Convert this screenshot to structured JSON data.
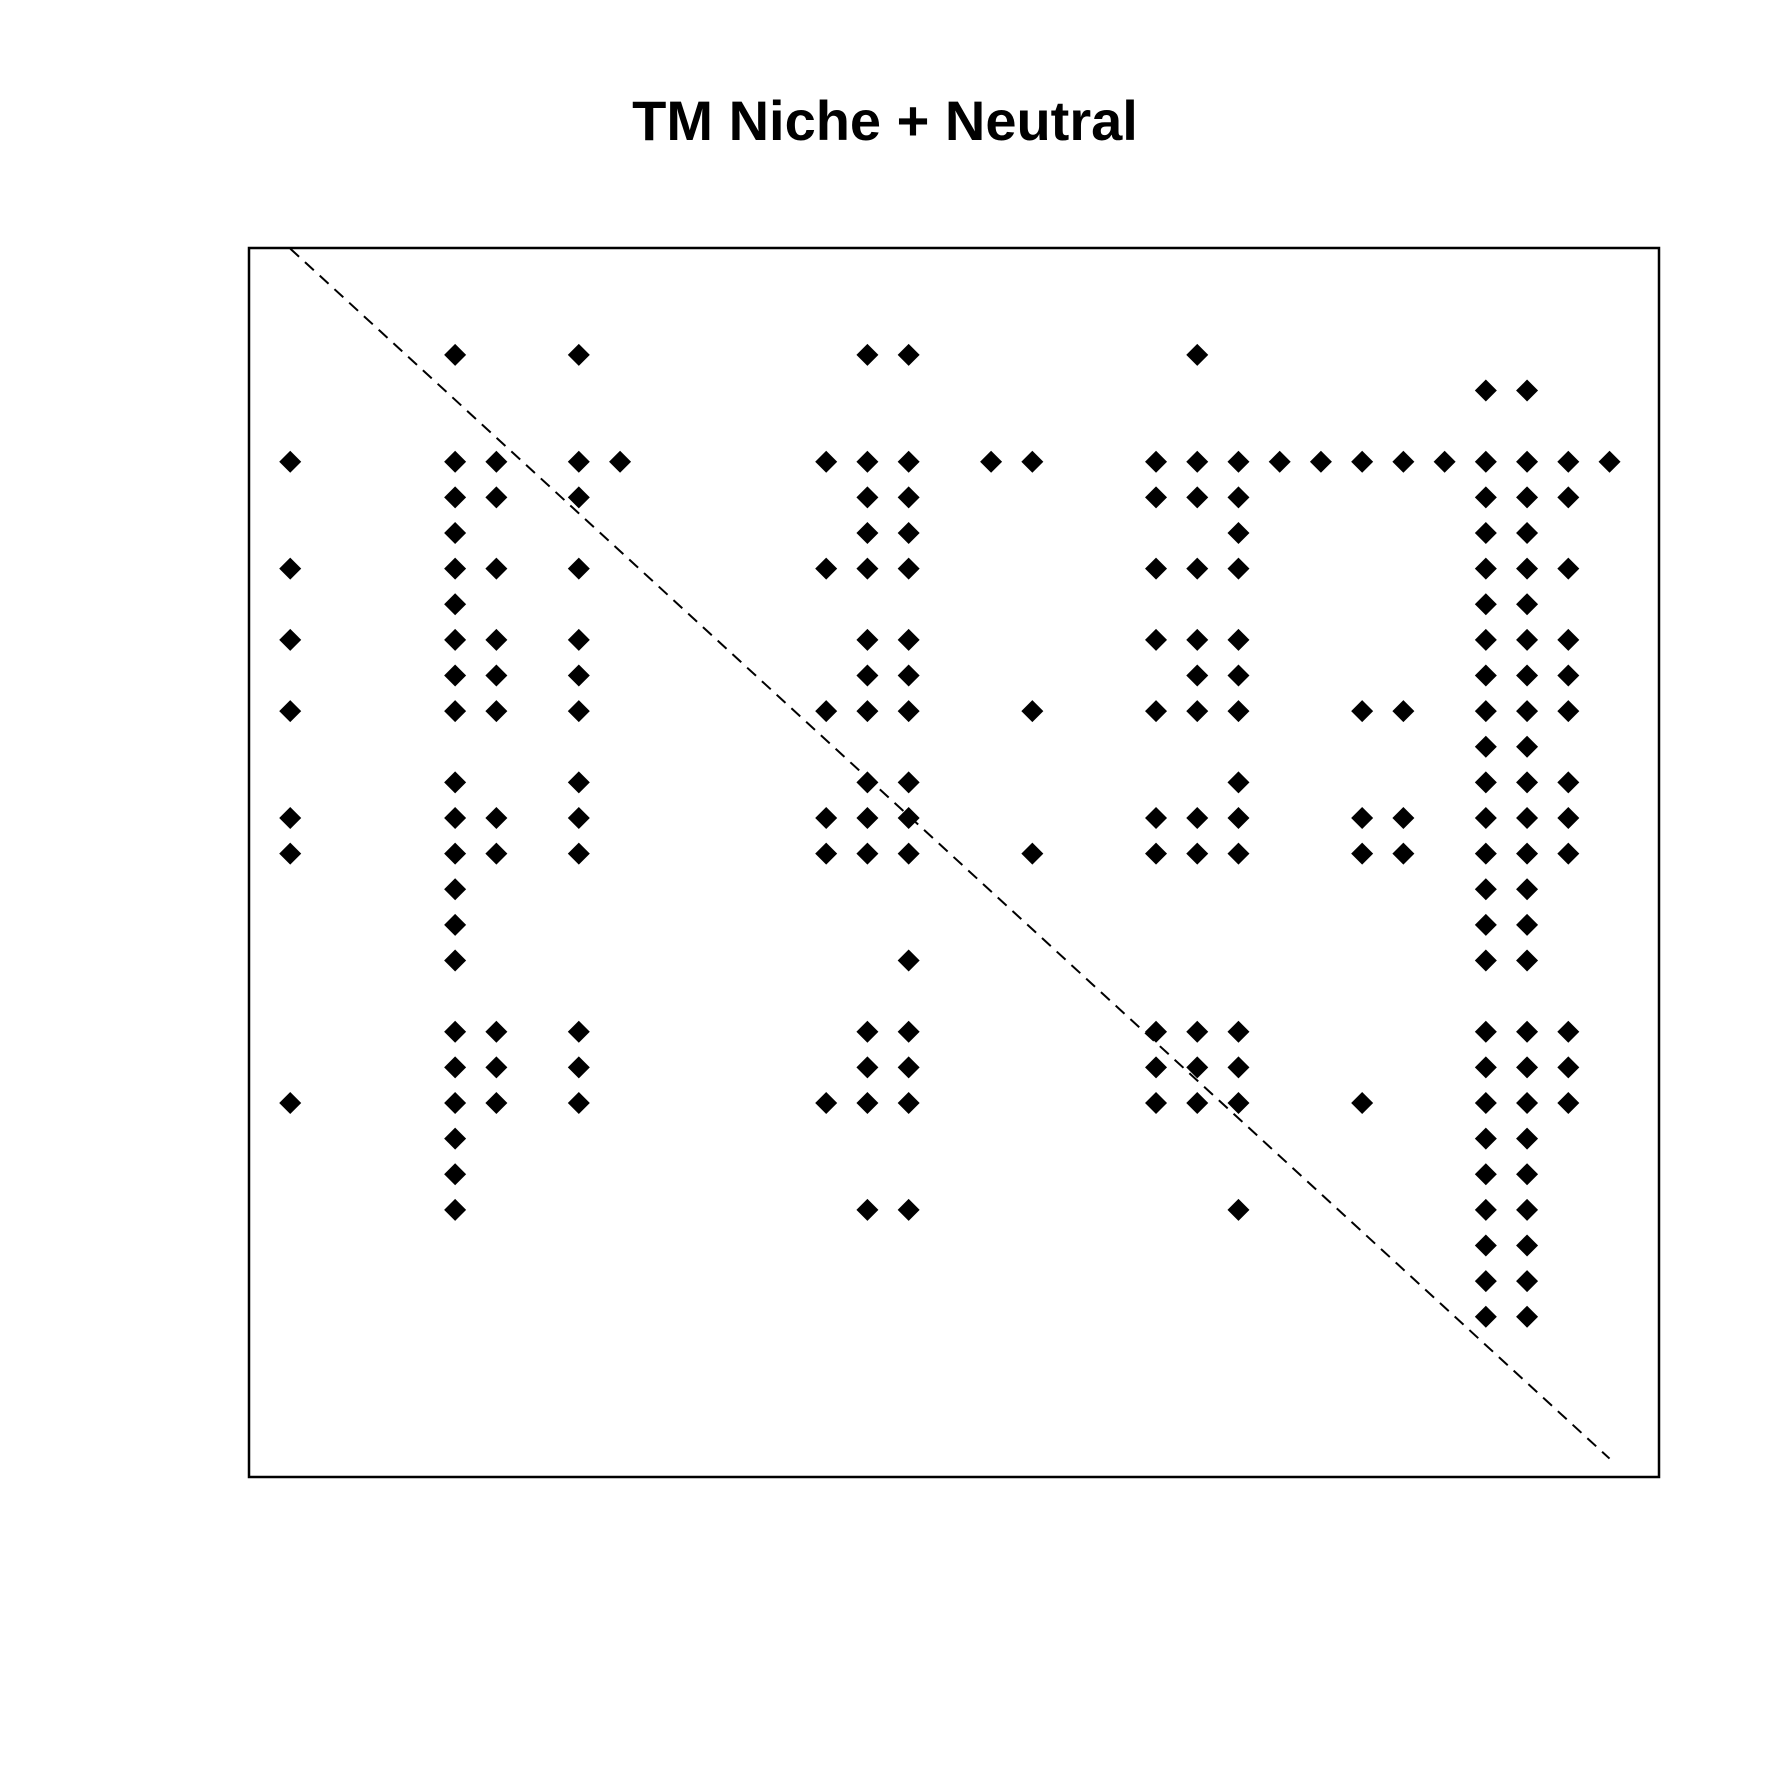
{
  "chart_data": {
    "type": "scatter",
    "title": "TM Niche + Neutral",
    "xlabel": "",
    "ylabel": "",
    "grid": false,
    "marker": "filled-diamond",
    "colors": {
      "points": "#000000",
      "diagonal": "#000000",
      "frame": "#000000"
    },
    "diagonal": {
      "style": "dashed",
      "from": [
        1,
        1
      ],
      "to": [
        33,
        33
      ]
    },
    "rows": 33,
    "cols": 33,
    "x_range": [
      0,
      34.2
    ],
    "y_range": [
      0,
      34.5
    ],
    "points": [
      [
        5,
        3
      ],
      [
        8,
        3
      ],
      [
        15,
        3
      ],
      [
        16,
        3
      ],
      [
        23,
        3
      ],
      [
        30,
        4
      ],
      [
        31,
        4
      ],
      [
        1,
        6
      ],
      [
        5,
        6
      ],
      [
        6,
        6
      ],
      [
        8,
        6
      ],
      [
        9,
        6
      ],
      [
        14,
        6
      ],
      [
        15,
        6
      ],
      [
        16,
        6
      ],
      [
        18,
        6
      ],
      [
        19,
        6
      ],
      [
        22,
        6
      ],
      [
        23,
        6
      ],
      [
        24,
        6
      ],
      [
        25,
        6
      ],
      [
        26,
        6
      ],
      [
        27,
        6
      ],
      [
        28,
        6
      ],
      [
        29,
        6
      ],
      [
        30,
        6
      ],
      [
        31,
        6
      ],
      [
        32,
        6
      ],
      [
        33,
        6
      ],
      [
        5,
        7
      ],
      [
        6,
        7
      ],
      [
        8,
        7
      ],
      [
        15,
        7
      ],
      [
        16,
        7
      ],
      [
        22,
        7
      ],
      [
        23,
        7
      ],
      [
        24,
        7
      ],
      [
        30,
        7
      ],
      [
        31,
        7
      ],
      [
        32,
        7
      ],
      [
        5,
        8
      ],
      [
        15,
        8
      ],
      [
        16,
        8
      ],
      [
        24,
        8
      ],
      [
        30,
        8
      ],
      [
        31,
        8
      ],
      [
        1,
        9
      ],
      [
        5,
        9
      ],
      [
        6,
        9
      ],
      [
        8,
        9
      ],
      [
        14,
        9
      ],
      [
        15,
        9
      ],
      [
        16,
        9
      ],
      [
        22,
        9
      ],
      [
        23,
        9
      ],
      [
        24,
        9
      ],
      [
        30,
        9
      ],
      [
        31,
        9
      ],
      [
        32,
        9
      ],
      [
        5,
        10
      ],
      [
        30,
        10
      ],
      [
        31,
        10
      ],
      [
        1,
        11
      ],
      [
        5,
        11
      ],
      [
        6,
        11
      ],
      [
        8,
        11
      ],
      [
        15,
        11
      ],
      [
        16,
        11
      ],
      [
        22,
        11
      ],
      [
        23,
        11
      ],
      [
        24,
        11
      ],
      [
        30,
        11
      ],
      [
        31,
        11
      ],
      [
        32,
        11
      ],
      [
        5,
        12
      ],
      [
        6,
        12
      ],
      [
        8,
        12
      ],
      [
        15,
        12
      ],
      [
        16,
        12
      ],
      [
        23,
        12
      ],
      [
        24,
        12
      ],
      [
        30,
        12
      ],
      [
        31,
        12
      ],
      [
        32,
        12
      ],
      [
        1,
        13
      ],
      [
        5,
        13
      ],
      [
        6,
        13
      ],
      [
        8,
        13
      ],
      [
        14,
        13
      ],
      [
        15,
        13
      ],
      [
        16,
        13
      ],
      [
        19,
        13
      ],
      [
        22,
        13
      ],
      [
        23,
        13
      ],
      [
        24,
        13
      ],
      [
        27,
        13
      ],
      [
        28,
        13
      ],
      [
        30,
        13
      ],
      [
        31,
        13
      ],
      [
        32,
        13
      ],
      [
        30,
        14
      ],
      [
        31,
        14
      ],
      [
        5,
        15
      ],
      [
        8,
        15
      ],
      [
        15,
        15
      ],
      [
        16,
        15
      ],
      [
        24,
        15
      ],
      [
        30,
        15
      ],
      [
        31,
        15
      ],
      [
        32,
        15
      ],
      [
        1,
        16
      ],
      [
        5,
        16
      ],
      [
        6,
        16
      ],
      [
        8,
        16
      ],
      [
        14,
        16
      ],
      [
        15,
        16
      ],
      [
        16,
        16
      ],
      [
        22,
        16
      ],
      [
        23,
        16
      ],
      [
        24,
        16
      ],
      [
        27,
        16
      ],
      [
        28,
        16
      ],
      [
        30,
        16
      ],
      [
        31,
        16
      ],
      [
        32,
        16
      ],
      [
        1,
        17
      ],
      [
        5,
        17
      ],
      [
        6,
        17
      ],
      [
        8,
        17
      ],
      [
        14,
        17
      ],
      [
        15,
        17
      ],
      [
        16,
        17
      ],
      [
        19,
        17
      ],
      [
        22,
        17
      ],
      [
        23,
        17
      ],
      [
        24,
        17
      ],
      [
        27,
        17
      ],
      [
        28,
        17
      ],
      [
        30,
        17
      ],
      [
        31,
        17
      ],
      [
        32,
        17
      ],
      [
        5,
        18
      ],
      [
        30,
        18
      ],
      [
        31,
        18
      ],
      [
        5,
        19
      ],
      [
        30,
        19
      ],
      [
        31,
        19
      ],
      [
        5,
        20
      ],
      [
        16,
        20
      ],
      [
        30,
        20
      ],
      [
        31,
        20
      ],
      [
        5,
        22
      ],
      [
        6,
        22
      ],
      [
        8,
        22
      ],
      [
        15,
        22
      ],
      [
        16,
        22
      ],
      [
        22,
        22
      ],
      [
        23,
        22
      ],
      [
        24,
        22
      ],
      [
        30,
        22
      ],
      [
        31,
        22
      ],
      [
        32,
        22
      ],
      [
        5,
        23
      ],
      [
        6,
        23
      ],
      [
        8,
        23
      ],
      [
        15,
        23
      ],
      [
        16,
        23
      ],
      [
        22,
        23
      ],
      [
        23,
        23
      ],
      [
        24,
        23
      ],
      [
        30,
        23
      ],
      [
        31,
        23
      ],
      [
        32,
        23
      ],
      [
        1,
        24
      ],
      [
        5,
        24
      ],
      [
        6,
        24
      ],
      [
        8,
        24
      ],
      [
        14,
        24
      ],
      [
        15,
        24
      ],
      [
        16,
        24
      ],
      [
        22,
        24
      ],
      [
        23,
        24
      ],
      [
        24,
        24
      ],
      [
        27,
        24
      ],
      [
        30,
        24
      ],
      [
        31,
        24
      ],
      [
        32,
        24
      ],
      [
        5,
        25
      ],
      [
        30,
        25
      ],
      [
        31,
        25
      ],
      [
        5,
        26
      ],
      [
        30,
        26
      ],
      [
        31,
        26
      ],
      [
        5,
        27
      ],
      [
        15,
        27
      ],
      [
        16,
        27
      ],
      [
        24,
        27
      ],
      [
        30,
        27
      ],
      [
        31,
        27
      ],
      [
        30,
        28
      ],
      [
        31,
        28
      ],
      [
        30,
        29
      ],
      [
        31,
        29
      ],
      [
        30,
        30
      ],
      [
        31,
        30
      ]
    ]
  }
}
